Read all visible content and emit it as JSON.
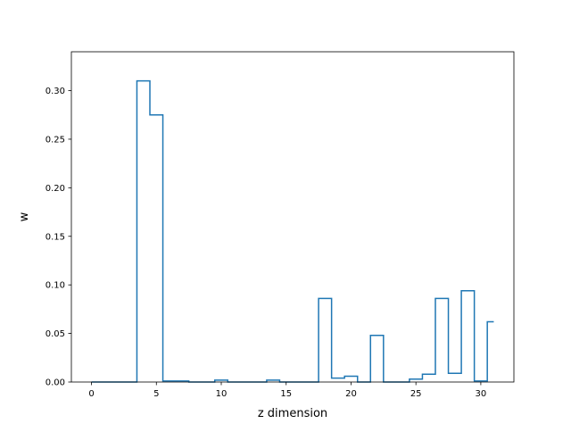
{
  "chart_data": {
    "type": "step",
    "xlabel": "z dimension",
    "ylabel": "w",
    "xlim": [
      -1.55,
      32.55
    ],
    "ylim": [
      0,
      0.34
    ],
    "xticks": [
      0,
      5,
      10,
      15,
      20,
      25,
      30
    ],
    "xtick_labels": [
      "0",
      "5",
      "10",
      "15",
      "20",
      "25",
      "30"
    ],
    "yticks": [
      0.0,
      0.05,
      0.1,
      0.15,
      0.2,
      0.25,
      0.3
    ],
    "ytick_labels": [
      "0.00",
      "0.05",
      "0.10",
      "0.15",
      "0.20",
      "0.25",
      "0.30"
    ],
    "grid": false,
    "color": "#1f77b4",
    "series": [
      {
        "x": [
          0,
          1,
          2,
          3,
          4,
          5,
          6,
          7,
          8,
          9,
          10,
          11,
          12,
          13,
          14,
          15,
          16,
          17,
          18,
          19,
          20,
          21,
          22,
          23,
          24,
          25,
          26,
          27,
          28,
          29,
          30,
          31
        ],
        "values": [
          0.0,
          0.0,
          0.0,
          0.0,
          0.31,
          0.275,
          0.001,
          0.001,
          0.0,
          0.0,
          0.002,
          0.0,
          0.0,
          0.0,
          0.002,
          0.0,
          0.0,
          0.0,
          0.086,
          0.004,
          0.006,
          0.0,
          0.048,
          0.0,
          0.0,
          0.003,
          0.008,
          0.086,
          0.009,
          0.094,
          0.001,
          0.062
        ]
      }
    ]
  }
}
